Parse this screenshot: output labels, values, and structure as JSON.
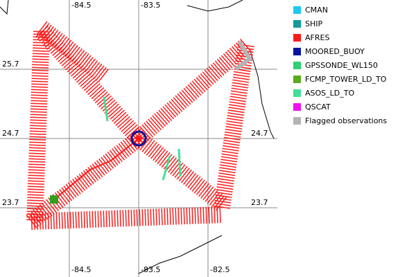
{
  "axes": {
    "top_labels": [
      "-84.5",
      "-83.5"
    ],
    "bottom_labels": [
      "-84.5",
      "-83.5",
      "-82.5"
    ],
    "left_labels": [
      "25.7",
      "24.7",
      "23.7"
    ],
    "right_labels": [
      "24.7",
      "23.7"
    ]
  },
  "legend": [
    {
      "label": "CMAN",
      "color": "#1ec8f0"
    },
    {
      "label": "SHIP",
      "color": "#139a9a"
    },
    {
      "label": "AFRES",
      "color": "#ff1a1a"
    },
    {
      "label": "MOORED_BUOY",
      "color": "#0014a0"
    },
    {
      "label": "GPSSONDE_WL150",
      "color": "#30d070"
    },
    {
      "label": "FCMP_TOWER_LD_TO",
      "color": "#5aac1e"
    },
    {
      "label": "ASOS_LD_TO",
      "color": "#40e098"
    },
    {
      "label": "QSCAT",
      "color": "#f010f0"
    },
    {
      "label": "Flagged observations",
      "color": "#b4b4b4"
    }
  ]
}
